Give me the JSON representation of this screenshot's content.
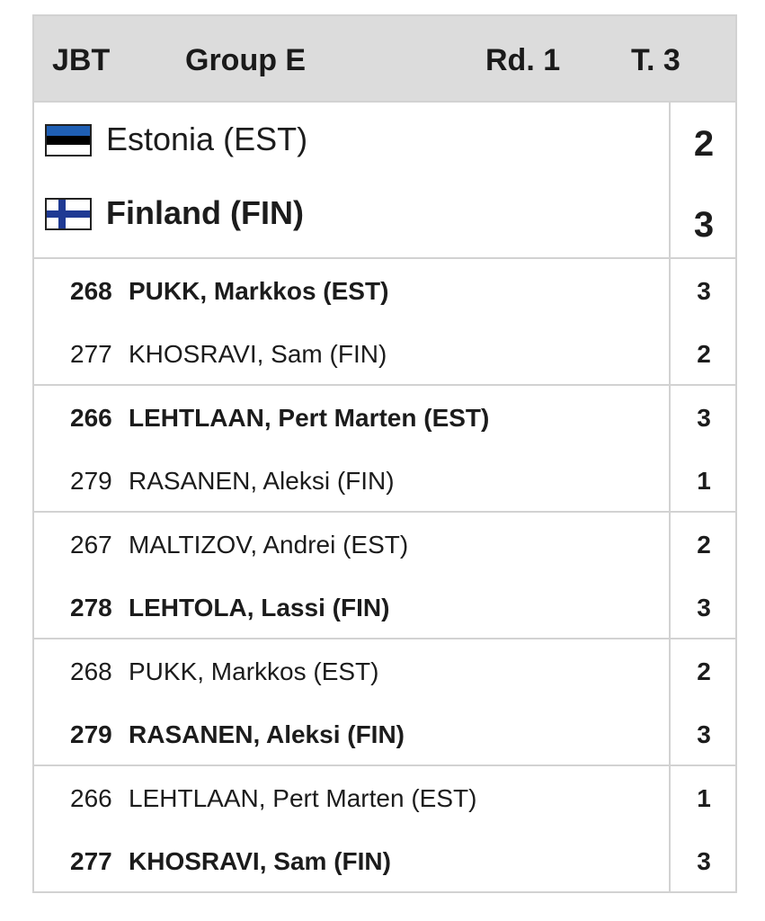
{
  "header": {
    "event": "JBT",
    "group": "Group E",
    "round": "Rd. 1",
    "table": "T. 3"
  },
  "teams": [
    {
      "name": "Estonia (EST)",
      "score": "2",
      "flag": "estonia-flag-icon",
      "winner": false
    },
    {
      "name": "Finland (FIN)",
      "score": "3",
      "flag": "finland-flag-icon",
      "winner": true
    }
  ],
  "matches": [
    {
      "p1": {
        "num": "268",
        "name": "PUKK, Markkos (EST)",
        "score": "3",
        "winner": true
      },
      "p2": {
        "num": "277",
        "name": "KHOSRAVI, Sam (FIN)",
        "score": "2",
        "winner": false
      }
    },
    {
      "p1": {
        "num": "266",
        "name": "LEHTLAAN, Pert Marten (EST)",
        "score": "3",
        "winner": true
      },
      "p2": {
        "num": "279",
        "name": "RASANEN, Aleksi (FIN)",
        "score": "1",
        "winner": false
      }
    },
    {
      "p1": {
        "num": "267",
        "name": "MALTIZOV, Andrei (EST)",
        "score": "2",
        "winner": false
      },
      "p2": {
        "num": "278",
        "name": "LEHTOLA, Lassi (FIN)",
        "score": "3",
        "winner": true
      }
    },
    {
      "p1": {
        "num": "268",
        "name": "PUKK, Markkos (EST)",
        "score": "2",
        "winner": false
      },
      "p2": {
        "num": "279",
        "name": "RASANEN, Aleksi (FIN)",
        "score": "3",
        "winner": true
      }
    },
    {
      "p1": {
        "num": "266",
        "name": "LEHTLAAN, Pert Marten (EST)",
        "score": "1",
        "winner": false
      },
      "p2": {
        "num": "277",
        "name": "KHOSRAVI, Sam (FIN)",
        "score": "3",
        "winner": true
      }
    }
  ],
  "colors": {
    "estonia_blue": "#1f5fb4",
    "estonia_black": "#000000",
    "finland_blue": "#1f3a93",
    "header_bg": "#dcdcdc",
    "border": "#d2d2d2"
  }
}
